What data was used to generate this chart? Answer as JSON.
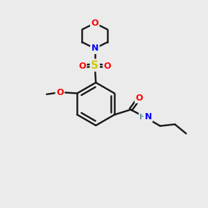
{
  "bg_color": "#ebebeb",
  "bond_color": "#1a1a1a",
  "bond_width": 1.8,
  "atom_colors": {
    "O": "#ff0000",
    "N": "#0000ff",
    "S": "#cccc00",
    "C": "#1a1a1a",
    "H": "#5a9999"
  },
  "font_size": 9
}
